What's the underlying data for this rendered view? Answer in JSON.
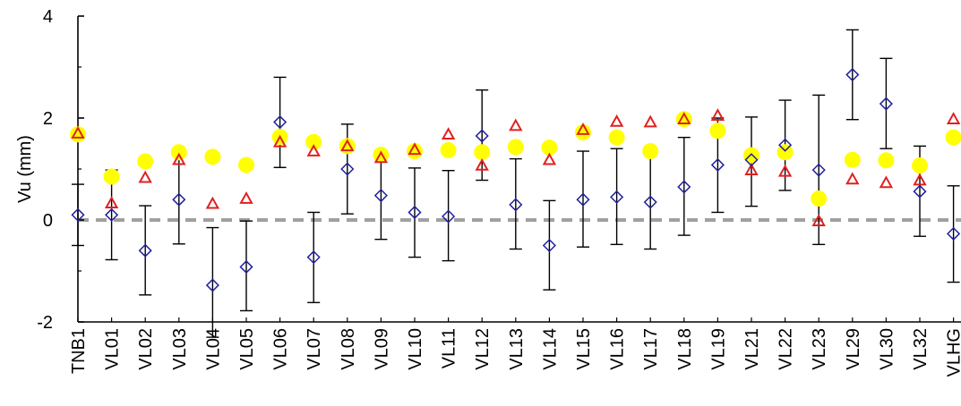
{
  "chart_data": {
    "type": "scatter",
    "title": "",
    "xlabel": "",
    "ylabel": "Vu (mm)",
    "ylim": [
      -2,
      4
    ],
    "yticks": [
      -2,
      0,
      2,
      4
    ],
    "grid": false,
    "categories": [
      "TNB1",
      "VL01",
      "VL02",
      "VL03",
      "VL04",
      "VL05",
      "VL06",
      "VL07",
      "VL08",
      "VL09",
      "VL10",
      "VL11",
      "VL12",
      "VL13",
      "VL14",
      "VL15",
      "VL16",
      "VL17",
      "VL18",
      "VL19",
      "VL21",
      "VL22",
      "VL23",
      "VL29",
      "VL30",
      "VL32",
      "VLHG"
    ],
    "reference_line": {
      "y": 0,
      "style": "dashed",
      "color": "#a0a0a0"
    },
    "series": [
      {
        "marker": "circle-filled",
        "color": "#ffff00",
        "values": [
          1.68,
          0.85,
          1.15,
          1.33,
          1.24,
          1.08,
          1.63,
          1.53,
          1.45,
          1.28,
          1.35,
          1.37,
          1.33,
          1.43,
          1.42,
          1.72,
          1.62,
          1.35,
          1.98,
          1.75,
          1.27,
          1.33,
          0.42,
          1.18,
          1.17,
          1.07,
          1.62
        ]
      },
      {
        "marker": "triangle-open",
        "color": "#e02020",
        "values": [
          1.7,
          0.33,
          0.83,
          1.18,
          0.32,
          0.42,
          1.53,
          1.35,
          1.45,
          1.22,
          1.38,
          1.68,
          1.07,
          1.85,
          1.18,
          1.77,
          1.93,
          1.92,
          1.98,
          2.05,
          0.98,
          0.95,
          -0.02,
          0.8,
          0.73,
          0.78,
          1.98
        ]
      },
      {
        "marker": "diamond-open",
        "color": "#2020a0",
        "values": [
          0.1,
          0.1,
          -0.6,
          0.4,
          -1.28,
          -0.92,
          1.92,
          -0.73,
          1.0,
          0.48,
          0.15,
          0.07,
          1.65,
          0.3,
          -0.5,
          0.4,
          0.45,
          0.35,
          0.65,
          1.08,
          1.18,
          1.47,
          0.98,
          2.85,
          2.28,
          0.56,
          -0.27
        ],
        "error_low": [
          -0.5,
          -0.78,
          -1.47,
          -0.47,
          -2.3,
          -1.78,
          1.03,
          -1.62,
          0.12,
          -0.38,
          -0.73,
          -0.8,
          0.78,
          -0.57,
          -1.37,
          -0.53,
          -0.48,
          -0.57,
          -0.3,
          0.15,
          0.27,
          0.58,
          -0.48,
          1.97,
          1.4,
          -0.32,
          -1.22
        ],
        "error_high": [
          0.7,
          0.98,
          0.28,
          1.27,
          -0.15,
          -0.02,
          2.8,
          0.15,
          1.88,
          1.35,
          1.02,
          0.97,
          2.55,
          1.2,
          0.38,
          1.35,
          1.4,
          1.3,
          1.62,
          2.0,
          2.02,
          2.35,
          2.45,
          3.73,
          3.17,
          1.45,
          0.67
        ]
      }
    ]
  }
}
